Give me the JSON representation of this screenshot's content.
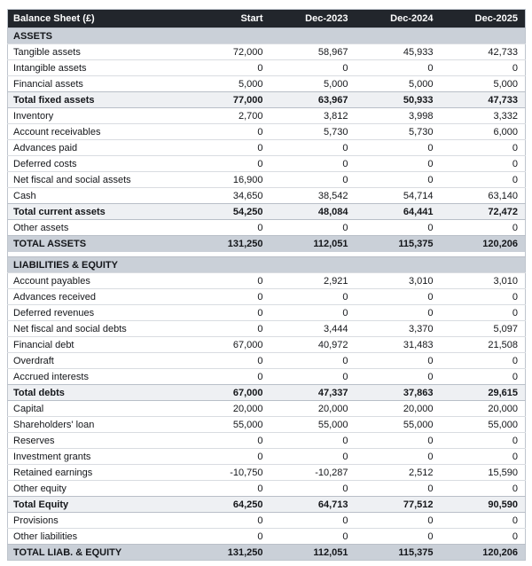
{
  "colors": {
    "header_bg": "#22262c",
    "header_text": "#ffffff",
    "section_bg": "#cad0d8",
    "grand_bg": "#cad0d8",
    "subtotal_bg": "#eef0f3",
    "row_border": "#d9dce1",
    "strong_border": "#b9bfc8",
    "outer_border": "#bfc5cd",
    "text": "#14161a"
  },
  "table": {
    "title": "Balance Sheet (£)",
    "columns": [
      "Start",
      "Dec-2023",
      "Dec-2024",
      "Dec-2025"
    ],
    "rows": [
      {
        "type": "section",
        "label": "ASSETS",
        "values": []
      },
      {
        "type": "item",
        "label": "Tangible assets",
        "values": [
          "72,000",
          "58,967",
          "45,933",
          "42,733"
        ]
      },
      {
        "type": "item",
        "label": "Intangible assets",
        "values": [
          "0",
          "0",
          "0",
          "0"
        ]
      },
      {
        "type": "item",
        "label": "Financial assets",
        "values": [
          "5,000",
          "5,000",
          "5,000",
          "5,000"
        ]
      },
      {
        "type": "subtotal",
        "label": "Total fixed assets",
        "values": [
          "77,000",
          "63,967",
          "50,933",
          "47,733"
        ]
      },
      {
        "type": "item",
        "label": "Inventory",
        "values": [
          "2,700",
          "3,812",
          "3,998",
          "3,332"
        ]
      },
      {
        "type": "item",
        "label": "Account receivables",
        "values": [
          "0",
          "5,730",
          "5,730",
          "6,000"
        ]
      },
      {
        "type": "item",
        "label": "Advances paid",
        "values": [
          "0",
          "0",
          "0",
          "0"
        ]
      },
      {
        "type": "item",
        "label": "Deferred costs",
        "values": [
          "0",
          "0",
          "0",
          "0"
        ]
      },
      {
        "type": "item",
        "label": "Net fiscal and social assets",
        "values": [
          "16,900",
          "0",
          "0",
          "0"
        ]
      },
      {
        "type": "item",
        "label": "Cash",
        "values": [
          "34,650",
          "38,542",
          "54,714",
          "63,140"
        ]
      },
      {
        "type": "subtotal",
        "label": "Total current assets",
        "values": [
          "54,250",
          "48,084",
          "64,441",
          "72,472"
        ]
      },
      {
        "type": "item",
        "label": "Other assets",
        "values": [
          "0",
          "0",
          "0",
          "0"
        ]
      },
      {
        "type": "grand",
        "label": "TOTAL ASSETS",
        "values": [
          "131,250",
          "112,051",
          "115,375",
          "120,206"
        ]
      },
      {
        "type": "gap",
        "label": "",
        "values": []
      },
      {
        "type": "section",
        "label": "LIABILITIES & EQUITY",
        "values": []
      },
      {
        "type": "item",
        "label": "Account payables",
        "values": [
          "0",
          "2,921",
          "3,010",
          "3,010"
        ]
      },
      {
        "type": "item",
        "label": "Advances received",
        "values": [
          "0",
          "0",
          "0",
          "0"
        ]
      },
      {
        "type": "item",
        "label": "Deferred revenues",
        "values": [
          "0",
          "0",
          "0",
          "0"
        ]
      },
      {
        "type": "item",
        "label": "Net fiscal and social debts",
        "values": [
          "0",
          "3,444",
          "3,370",
          "5,097"
        ]
      },
      {
        "type": "item",
        "label": "Financial debt",
        "values": [
          "67,000",
          "40,972",
          "31,483",
          "21,508"
        ]
      },
      {
        "type": "item",
        "label": "Overdraft",
        "values": [
          "0",
          "0",
          "0",
          "0"
        ]
      },
      {
        "type": "item",
        "label": "Accrued interests",
        "values": [
          "0",
          "0",
          "0",
          "0"
        ]
      },
      {
        "type": "subtotal",
        "label": "Total debts",
        "values": [
          "67,000",
          "47,337",
          "37,863",
          "29,615"
        ]
      },
      {
        "type": "item",
        "label": "Capital",
        "values": [
          "20,000",
          "20,000",
          "20,000",
          "20,000"
        ]
      },
      {
        "type": "item",
        "label": "Shareholders' loan",
        "values": [
          "55,000",
          "55,000",
          "55,000",
          "55,000"
        ]
      },
      {
        "type": "item",
        "label": "Reserves",
        "values": [
          "0",
          "0",
          "0",
          "0"
        ]
      },
      {
        "type": "item",
        "label": "Investment grants",
        "values": [
          "0",
          "0",
          "0",
          "0"
        ]
      },
      {
        "type": "item",
        "label": "Retained earnings",
        "values": [
          "-10,750",
          "-10,287",
          "2,512",
          "15,590"
        ]
      },
      {
        "type": "item",
        "label": "Other equity",
        "values": [
          "0",
          "0",
          "0",
          "0"
        ]
      },
      {
        "type": "subtotal",
        "label": "Total Equity",
        "values": [
          "64,250",
          "64,713",
          "77,512",
          "90,590"
        ]
      },
      {
        "type": "item",
        "label": "Provisions",
        "values": [
          "0",
          "0",
          "0",
          "0"
        ]
      },
      {
        "type": "item",
        "label": "Other liabilities",
        "values": [
          "0",
          "0",
          "0",
          "0"
        ]
      },
      {
        "type": "grand",
        "label": "TOTAL LIAB. & EQUITY",
        "values": [
          "131,250",
          "112,051",
          "115,375",
          "120,206"
        ]
      }
    ]
  }
}
